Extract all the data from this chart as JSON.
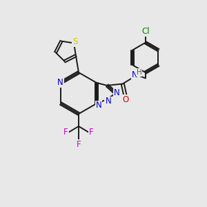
{
  "background_color": "#e8e8e8",
  "bond_color": "#1a1a1a",
  "bond_width": 1.4,
  "atom_colors": {
    "S": "#cccc00",
    "N": "#0000cc",
    "O": "#cc0000",
    "F": "#cc00cc",
    "Cl": "#008800",
    "H": "#555555",
    "C": "#1a1a1a"
  },
  "font_size": 8.5,
  "fig_width": 3.0,
  "fig_height": 3.0,
  "dpi": 100,
  "xlim": [
    0,
    10
  ],
  "ylim": [
    0,
    10
  ]
}
